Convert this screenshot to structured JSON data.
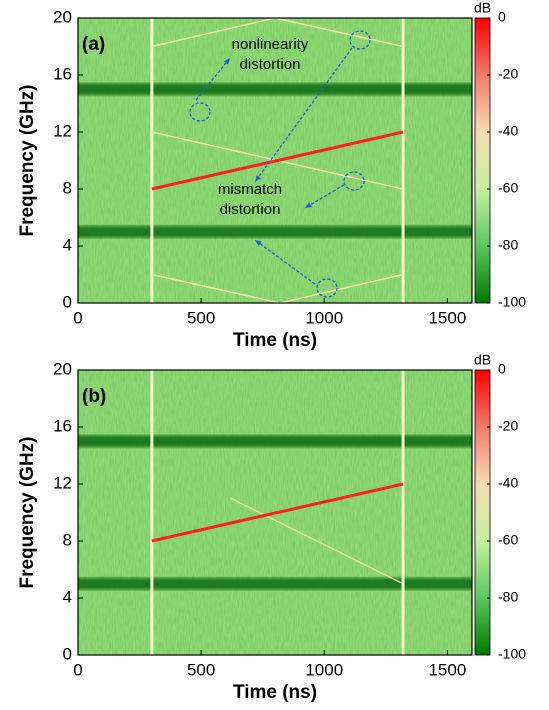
{
  "chart_data": [
    {
      "type": "spectrogram",
      "panel_label": "(a)",
      "xlabel": "Time (ns)",
      "ylabel": "Frequency (GHz)",
      "xlim": [
        0,
        1600
      ],
      "xticks": [
        0,
        500,
        1000,
        1500
      ],
      "ylim": [
        0,
        20
      ],
      "yticks": [
        0,
        4,
        8,
        12,
        16,
        20
      ],
      "colorbar": {
        "label": "dB",
        "lim": [
          -100,
          0
        ],
        "ticks": [
          0,
          -20,
          -40,
          -60,
          -80,
          -100
        ]
      },
      "bands": [
        5,
        15
      ],
      "markers_x": [
        300,
        1320
      ],
      "chirp": {
        "x": [
          300,
          1320
        ],
        "y": [
          8,
          12
        ],
        "color": "#ff2020"
      },
      "spurs": [
        {
          "x": [
            300,
            1320
          ],
          "y": [
            12,
            8
          ]
        },
        {
          "x": [
            300,
            820,
            1320
          ],
          "y": [
            2,
            0,
            2
          ]
        },
        {
          "x": [
            300,
            800,
            1320
          ],
          "y": [
            18,
            20,
            18
          ]
        }
      ],
      "spur_color": "#f3e7a8",
      "annotations": [
        {
          "lines": [
            "nonlinearity",
            "distortion"
          ]
        },
        {
          "lines": [
            "mismatch",
            "distortion"
          ]
        }
      ]
    },
    {
      "type": "spectrogram",
      "panel_label": "(b)",
      "xlabel": "Time (ns)",
      "ylabel": "Frequency (GHz)",
      "xlim": [
        0,
        1600
      ],
      "xticks": [
        0,
        500,
        1000,
        1500
      ],
      "ylim": [
        0,
        20
      ],
      "yticks": [
        0,
        4,
        8,
        12,
        16,
        20
      ],
      "colorbar": {
        "label": "dB",
        "lim": [
          -100,
          0
        ],
        "ticks": [
          0,
          -20,
          -40,
          -60,
          -80,
          -100
        ]
      },
      "bands": [
        5,
        15
      ],
      "markers_x": [
        300,
        1320
      ],
      "chirp": {
        "x": [
          300,
          1320
        ],
        "y": [
          8,
          12
        ],
        "color": "#ff2020"
      },
      "spurs": [
        {
          "x": [
            620,
            1320
          ],
          "y": [
            11,
            5
          ]
        }
      ],
      "spur_color": "#e6e6a0",
      "annotations": []
    }
  ]
}
